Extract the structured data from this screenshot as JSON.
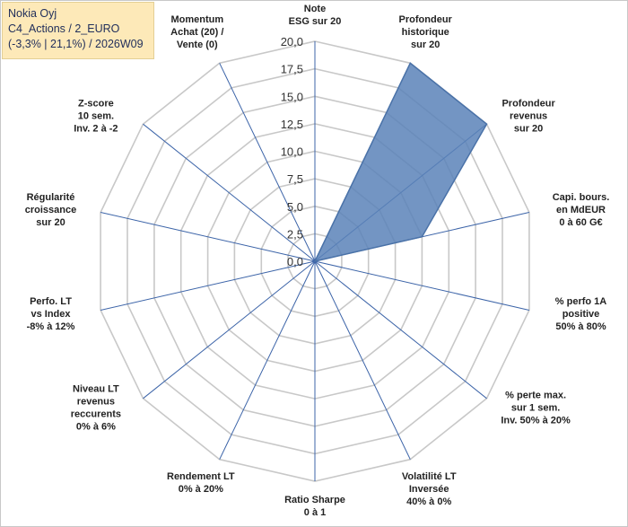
{
  "info_box": {
    "line1": "Nokia Oyj",
    "line2": "C4_Actions / 2_EURO",
    "line3": "(-3,3% | 21,1%) / 2026W09"
  },
  "colors": {
    "fill": "#5b82b8",
    "stroke": "#4a72a8",
    "grid": "#c8c8c8",
    "spoke": "#3c64a8",
    "info_bg": "#fde9b8"
  },
  "chart_data": {
    "type": "radar",
    "title": "",
    "rmax": 20,
    "ticks": [
      "0,0",
      "2,5",
      "5,0",
      "7,5",
      "10,0",
      "12,5",
      "15,0",
      "17,5",
      "20,0"
    ],
    "categories": [
      [
        "Note",
        "ESG sur 20"
      ],
      [
        "Profondeur",
        "historique",
        "sur 20"
      ],
      [
        "Profondeur",
        "revenus",
        "sur 20"
      ],
      [
        "Capi. bours.",
        "en MdEUR",
        "0 à 60 G€"
      ],
      [
        "% perfo 1A",
        "positive",
        "50% à 80%"
      ],
      [
        "% perte max.",
        "sur 1 sem.",
        "Inv. 50% à 20%"
      ],
      [
        "Volatilité LT",
        "Inversée",
        "40% à 0%"
      ],
      [
        "Ratio Sharpe",
        "0 à 1"
      ],
      [
        "Rendement LT",
        "0% à 20%"
      ],
      [
        "Niveau LT",
        "revenus",
        "reccurents",
        "0% à 6%"
      ],
      [
        "Perfo. LT",
        "vs Index",
        "-8% à 12%"
      ],
      [
        "Régularité",
        "croissance",
        "sur 20"
      ],
      [
        "Z-score",
        "10 sem.",
        "Inv. 2 à -2"
      ],
      [
        "Momentum",
        "Achat (20) /",
        "Vente (0)"
      ]
    ],
    "series": [
      {
        "values": [
          0,
          20,
          20,
          10,
          0,
          0,
          0,
          0,
          0,
          0,
          0,
          0,
          0,
          0
        ]
      }
    ],
    "grid": true,
    "legend": "none"
  }
}
